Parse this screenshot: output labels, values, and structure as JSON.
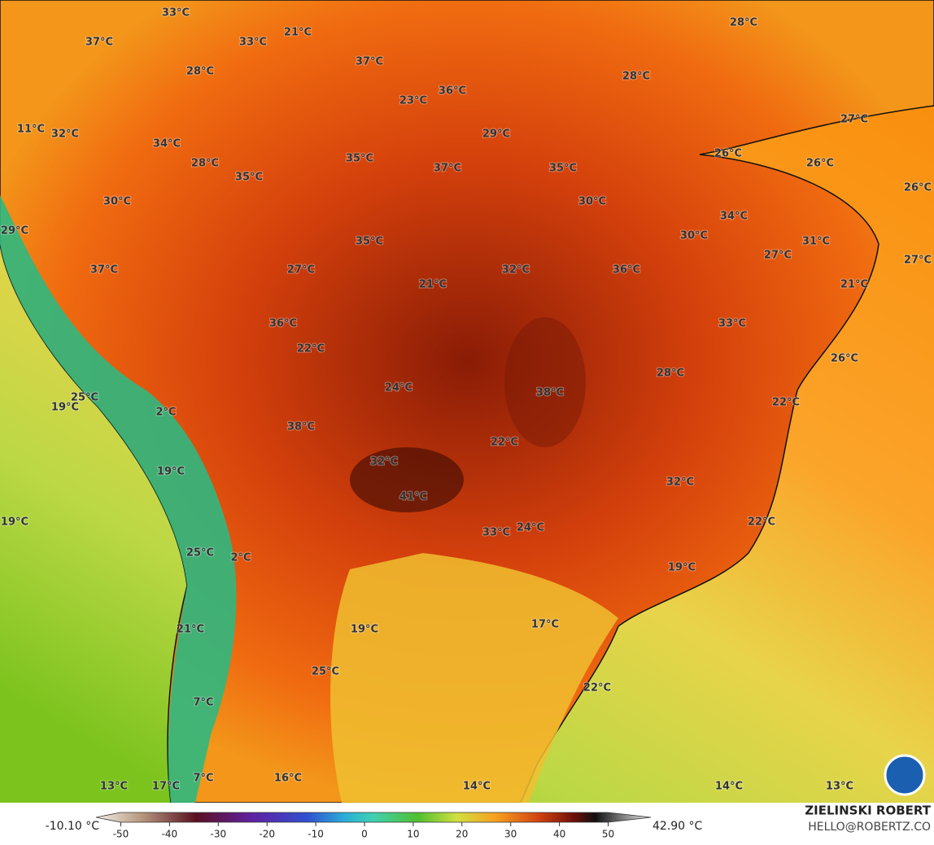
{
  "map": {
    "labels": [
      "33°C",
      "37°C",
      "33°C",
      "21°C",
      "37°C",
      "28°C",
      "28°C",
      "28°C",
      "23°C",
      "36°C",
      "11°C",
      "32°C",
      "29°C",
      "27°C",
      "34°C",
      "35°C",
      "26°C",
      "28°C",
      "37°C",
      "35°C",
      "26°C",
      "35°C",
      "26°C",
      "30°C",
      "30°C",
      "34°C",
      "29°C",
      "30°C",
      "31°C",
      "35°C",
      "27°C",
      "27°C",
      "37°C",
      "27°C",
      "32°C",
      "36°C",
      "21°C",
      "21°C",
      "36°C",
      "33°C",
      "22°C",
      "26°C",
      "28°C",
      "24°C",
      "38°C",
      "25°C",
      "19°C",
      "22°C",
      "2°C",
      "38°C",
      "22°C",
      "32°C",
      "19°C",
      "32°C",
      "41°C",
      "19°C",
      "22°C",
      "33°C",
      "24°C",
      "25°C",
      "2°C",
      "19°C",
      "21°C",
      "19°C",
      "17°C",
      "25°C",
      "22°C",
      "7°C",
      "16°C",
      "7°C",
      "13°C",
      "17°C",
      "14°C",
      "14°C",
      "13°C"
    ]
  },
  "colorbar": {
    "min_label": "-10.10 °C",
    "max_label": "42.90 °C",
    "ticks": [
      -50,
      -40,
      -30,
      -20,
      -10,
      0,
      10,
      20,
      30,
      40,
      50
    ]
  },
  "credit": {
    "name": "ZIELINSKI ROBERT",
    "email": "HELLO@ROBERTZ.CO"
  }
}
